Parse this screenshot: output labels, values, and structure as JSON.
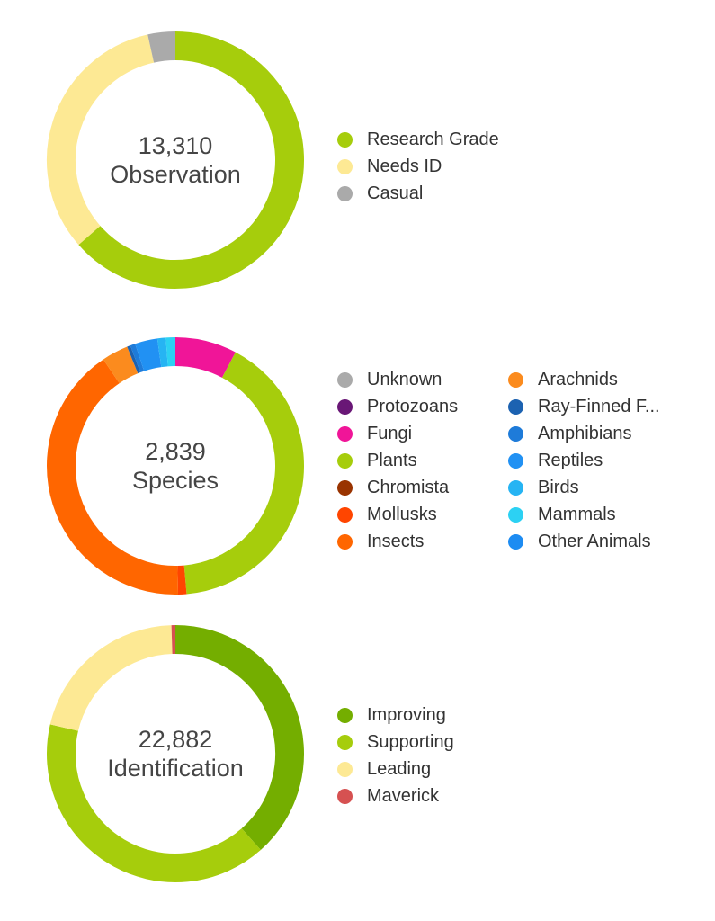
{
  "chart_data": [
    {
      "type": "donut",
      "total": "13,310",
      "center_label": "Observation",
      "series": [
        {
          "name": "Research Grade",
          "value": 8460,
          "color": "#a6cd0c"
        },
        {
          "name": "Needs ID",
          "value": 4390,
          "color": "#fde994"
        },
        {
          "name": "Casual",
          "value": 460,
          "color": "#aaaaaa"
        }
      ]
    },
    {
      "type": "donut",
      "total": "2,839",
      "center_label": "Species",
      "series": [
        {
          "name": "Unknown",
          "value": 0,
          "color": "#aaaaaa"
        },
        {
          "name": "Protozoans",
          "value": 0,
          "color": "#691776"
        },
        {
          "name": "Fungi",
          "value": 220,
          "color": "#f01598"
        },
        {
          "name": "Plants",
          "value": 1160,
          "color": "#a6cd0c"
        },
        {
          "name": "Chromista",
          "value": 0,
          "color": "#993300"
        },
        {
          "name": "Mollusks",
          "value": 30,
          "color": "#ff4500"
        },
        {
          "name": "Insects",
          "value": 1160,
          "color": "#ff6600"
        },
        {
          "name": "Arachnids",
          "value": 95,
          "color": "#fb8b1e"
        },
        {
          "name": "Ray-Finned F...",
          "value": 12,
          "color": "#1c62b1"
        },
        {
          "name": "Amphibians",
          "value": 18,
          "color": "#1e7bd9"
        },
        {
          "name": "Reptiles",
          "value": 80,
          "color": "#2191f3"
        },
        {
          "name": "Birds",
          "value": 30,
          "color": "#26b4f3"
        },
        {
          "name": "Mammals",
          "value": 34,
          "color": "#2cd1f3"
        },
        {
          "name": "Other Animals",
          "value": 0,
          "color": "#1d8cf2"
        }
      ]
    },
    {
      "type": "donut",
      "total": "22,882",
      "center_label": "Identification",
      "series": [
        {
          "name": "Improving",
          "value": 8800,
          "color": "#74ae00"
        },
        {
          "name": "Supporting",
          "value": 9200,
          "color": "#a6cd0c"
        },
        {
          "name": "Leading",
          "value": 4770,
          "color": "#fde994"
        },
        {
          "name": "Maverick",
          "value": 112,
          "color": "#d65151"
        }
      ]
    }
  ]
}
